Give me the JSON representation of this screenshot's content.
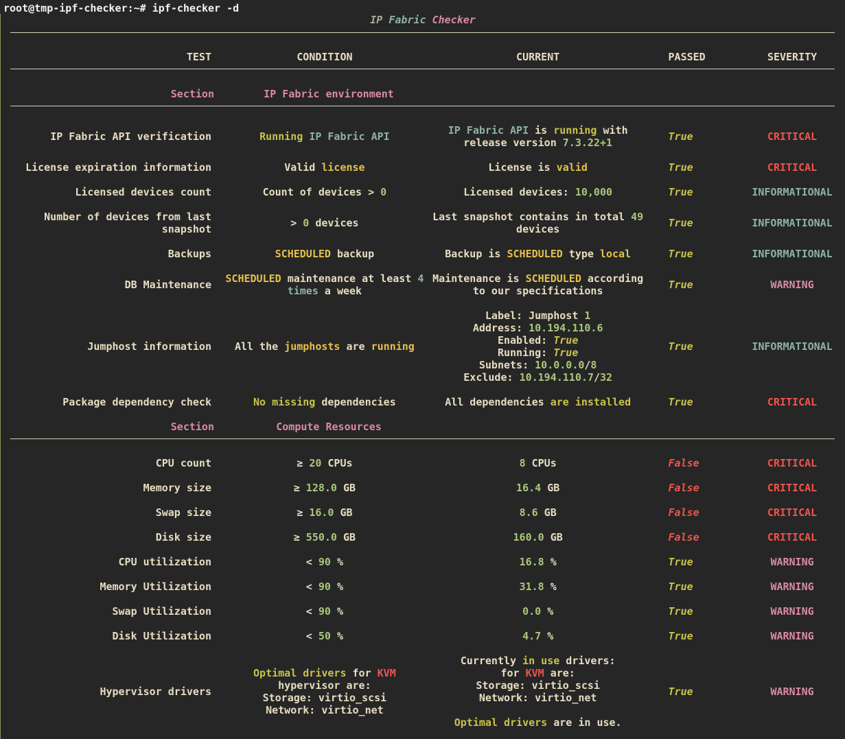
{
  "prompt": "root@tmp-ipf-checker:~# ipf-checker -d",
  "title": [
    {
      "text": "IP ",
      "color": "#a9a79a",
      "italic": true
    },
    {
      "text": "Fabric ",
      "color": "#8db3a5",
      "italic": true
    },
    {
      "text": "Checker",
      "color": "#d98aa6",
      "italic": true
    }
  ],
  "header": [
    "TEST",
    "CONDITION",
    "CURRENT",
    "PASSED",
    "SEVERITY"
  ],
  "sections": [
    {
      "label": "Section",
      "name": "IP Fabric environment",
      "rows": [
        {
          "test": [
            "IP Fabric API verification"
          ],
          "condition": [
            [
              {
                "text": "Running",
                "color": "#c9c24b"
              },
              " ",
              {
                "text": "IP Fabric API",
                "color": "#8db3a5"
              }
            ]
          ],
          "current": [
            [
              {
                "text": "IP Fabric API",
                "color": "#8db3a5"
              },
              " is ",
              {
                "text": "running",
                "color": "#c9c24b"
              },
              " with"
            ],
            [
              "release version ",
              {
                "text": "7.3.22+1",
                "color": "#a9c77c"
              }
            ]
          ],
          "passed": {
            "text": "True",
            "color": "#c9c24b",
            "italic": true
          },
          "severity": {
            "text": "CRITICAL",
            "color": "#f0544c"
          }
        },
        {
          "test": [
            "License expiration information"
          ],
          "condition": [
            [
              "Valid ",
              {
                "text": "license",
                "color": "#e5c04a"
              }
            ]
          ],
          "current": [
            [
              "License is ",
              {
                "text": "valid",
                "color": "#e5c04a"
              }
            ]
          ],
          "passed": {
            "text": "True",
            "color": "#c9c24b",
            "italic": true
          },
          "severity": {
            "text": "CRITICAL",
            "color": "#f0544c"
          }
        },
        {
          "test": [
            "Licensed devices count"
          ],
          "condition": [
            [
              "Count of devices > ",
              {
                "text": "0",
                "color": "#a9c77c"
              }
            ]
          ],
          "current": [
            [
              "Licensed devices: ",
              {
                "text": "10,000",
                "color": "#a9c77c"
              }
            ]
          ],
          "passed": {
            "text": "True",
            "color": "#c9c24b",
            "italic": true
          },
          "severity": {
            "text": "INFORMATIONAL",
            "color": "#8db3a5"
          }
        },
        {
          "test": [
            "Number of devices from last",
            "snapshot"
          ],
          "condition": [
            [
              "> ",
              {
                "text": "0",
                "color": "#a9c77c"
              },
              " devices"
            ]
          ],
          "current": [
            [
              "Last snapshot contains in total ",
              {
                "text": "49",
                "color": "#a9c77c"
              }
            ],
            [
              "devices"
            ]
          ],
          "passed": {
            "text": "True",
            "color": "#c9c24b",
            "italic": true
          },
          "severity": {
            "text": "INFORMATIONAL",
            "color": "#8db3a5"
          }
        },
        {
          "test": [
            "Backups"
          ],
          "condition": [
            [
              {
                "text": "SCHEDULED",
                "color": "#e5c04a"
              },
              " backup"
            ]
          ],
          "current": [
            [
              "Backup is ",
              {
                "text": "SCHEDULED",
                "color": "#e5c04a"
              },
              " type ",
              {
                "text": "local",
                "color": "#e5c04a"
              }
            ]
          ],
          "passed": {
            "text": "True",
            "color": "#c9c24b",
            "italic": true
          },
          "severity": {
            "text": "INFORMATIONAL",
            "color": "#8db3a5"
          }
        },
        {
          "test": [
            "DB Maintenance"
          ],
          "condition": [
            [
              {
                "text": "SCHEDULED",
                "color": "#e5c04a"
              },
              " maintenance at least ",
              {
                "text": "4",
                "color": "#8db3a5"
              }
            ],
            [
              {
                "text": "times",
                "color": "#8db3a5"
              },
              " a week"
            ]
          ],
          "current": [
            [
              "Maintenance is ",
              {
                "text": "SCHEDULED",
                "color": "#e5c04a"
              },
              " according"
            ],
            [
              "to our specifications"
            ]
          ],
          "passed": {
            "text": "True",
            "color": "#c9c24b",
            "italic": true
          },
          "severity": {
            "text": "WARNING",
            "color": "#d98aa6"
          }
        },
        {
          "test": [
            "Jumphost information"
          ],
          "condition": [
            [
              "All the ",
              {
                "text": "jumphosts",
                "color": "#e5c04a"
              },
              " are ",
              {
                "text": "running",
                "color": "#e5c04a"
              }
            ]
          ],
          "current": [
            [
              "Label: Jumphost ",
              {
                "text": "1",
                "color": "#a9c77c"
              }
            ],
            [
              "Address: ",
              {
                "text": "10.194.110.6",
                "color": "#a9c77c"
              }
            ],
            [
              "Enabled: ",
              {
                "text": "True",
                "color": "#c9c24b",
                "italic": true
              }
            ],
            [
              "Running: ",
              {
                "text": "True",
                "color": "#c9c24b",
                "italic": true
              }
            ],
            [
              "Subnets: ",
              {
                "text": "10.0.0.0",
                "color": "#a9c77c"
              },
              "/",
              {
                "text": "8",
                "color": "#a9c77c"
              }
            ],
            [
              "Exclude: ",
              {
                "text": "10.194.110.7",
                "color": "#a9c77c"
              },
              "/",
              {
                "text": "32",
                "color": "#a9c77c"
              }
            ]
          ],
          "passed": {
            "text": "True",
            "color": "#c9c24b",
            "italic": true
          },
          "severity": {
            "text": "INFORMATIONAL",
            "color": "#8db3a5"
          }
        },
        {
          "test": [
            "Package dependency check"
          ],
          "condition": [
            [
              {
                "text": "No missing",
                "color": "#c9c24b"
              },
              " dependencies"
            ]
          ],
          "current": [
            [
              "All dependencies ",
              {
                "text": "are installed",
                "color": "#c9c24b"
              }
            ]
          ],
          "passed": {
            "text": "True",
            "color": "#c9c24b",
            "italic": true
          },
          "severity": {
            "text": "CRITICAL",
            "color": "#f0544c"
          }
        }
      ]
    },
    {
      "label": "Section",
      "name": "Compute Resources",
      "rows": [
        {
          "test": [
            "CPU count"
          ],
          "condition": [
            [
              "≥ ",
              {
                "text": "20",
                "color": "#a9c77c"
              },
              " CPUs"
            ]
          ],
          "current": [
            [
              {
                "text": "8",
                "color": "#a9c77c"
              },
              " CPUs"
            ]
          ],
          "passed": {
            "text": "False",
            "color": "#f0544c",
            "italic": true
          },
          "severity": {
            "text": "CRITICAL",
            "color": "#f0544c"
          }
        },
        {
          "test": [
            "Memory size"
          ],
          "condition": [
            [
              "≥ ",
              {
                "text": "128.0",
                "color": "#a9c77c"
              },
              " GB"
            ]
          ],
          "current": [
            [
              {
                "text": "16.4",
                "color": "#a9c77c"
              },
              " GB"
            ]
          ],
          "passed": {
            "text": "False",
            "color": "#f0544c",
            "italic": true
          },
          "severity": {
            "text": "CRITICAL",
            "color": "#f0544c"
          }
        },
        {
          "test": [
            "Swap size"
          ],
          "condition": [
            [
              "≥ ",
              {
                "text": "16.0",
                "color": "#a9c77c"
              },
              " GB"
            ]
          ],
          "current": [
            [
              {
                "text": "8.6",
                "color": "#a9c77c"
              },
              " GB"
            ]
          ],
          "passed": {
            "text": "False",
            "color": "#f0544c",
            "italic": true
          },
          "severity": {
            "text": "CRITICAL",
            "color": "#f0544c"
          }
        },
        {
          "test": [
            "Disk size"
          ],
          "condition": [
            [
              "≥ ",
              {
                "text": "550.0",
                "color": "#a9c77c"
              },
              " GB"
            ]
          ],
          "current": [
            [
              {
                "text": "160.0",
                "color": "#a9c77c"
              },
              " GB"
            ]
          ],
          "passed": {
            "text": "False",
            "color": "#f0544c",
            "italic": true
          },
          "severity": {
            "text": "CRITICAL",
            "color": "#f0544c"
          }
        },
        {
          "test": [
            "CPU utilization"
          ],
          "condition": [
            [
              "< ",
              {
                "text": "90",
                "color": "#a9c77c"
              },
              " %"
            ]
          ],
          "current": [
            [
              {
                "text": "16.8",
                "color": "#a9c77c"
              },
              " %"
            ]
          ],
          "passed": {
            "text": "True",
            "color": "#c9c24b",
            "italic": true
          },
          "severity": {
            "text": "WARNING",
            "color": "#d98aa6"
          }
        },
        {
          "test": [
            "Memory Utilization"
          ],
          "condition": [
            [
              "< ",
              {
                "text": "90",
                "color": "#a9c77c"
              },
              " %"
            ]
          ],
          "current": [
            [
              {
                "text": "31.8",
                "color": "#a9c77c"
              },
              " %"
            ]
          ],
          "passed": {
            "text": "True",
            "color": "#c9c24b",
            "italic": true
          },
          "severity": {
            "text": "WARNING",
            "color": "#d98aa6"
          }
        },
        {
          "test": [
            "Swap Utilization"
          ],
          "condition": [
            [
              "< ",
              {
                "text": "90",
                "color": "#a9c77c"
              },
              " %"
            ]
          ],
          "current": [
            [
              {
                "text": "0.0",
                "color": "#a9c77c"
              },
              " %"
            ]
          ],
          "passed": {
            "text": "True",
            "color": "#c9c24b",
            "italic": true
          },
          "severity": {
            "text": "WARNING",
            "color": "#d98aa6"
          }
        },
        {
          "test": [
            "Disk Utilization"
          ],
          "condition": [
            [
              "< ",
              {
                "text": "50",
                "color": "#a9c77c"
              },
              " %"
            ]
          ],
          "current": [
            [
              {
                "text": "4.7",
                "color": "#a9c77c"
              },
              " %"
            ]
          ],
          "passed": {
            "text": "True",
            "color": "#c9c24b",
            "italic": true
          },
          "severity": {
            "text": "WARNING",
            "color": "#d98aa6"
          }
        },
        {
          "test": [
            "Hypervisor drivers"
          ],
          "condition": [
            [
              {
                "text": "Optimal drivers",
                "color": "#c9c24b"
              },
              " for ",
              {
                "text": "KVM",
                "color": "#f0544c"
              }
            ],
            [
              "hypervisor are:"
            ],
            [
              "Storage: virtio_scsi"
            ],
            [
              "Network: virtio_net"
            ]
          ],
          "current": [
            [
              "Currently ",
              {
                "text": "in use",
                "color": "#c9c24b"
              },
              " drivers:"
            ],
            [
              "for ",
              {
                "text": "KVM",
                "color": "#f0544c"
              },
              " are:"
            ],
            [
              "Storage: virtio_scsi"
            ],
            [
              "Network: virtio_net"
            ],
            [],
            [
              {
                "text": "Optimal drivers",
                "color": "#c9c24b"
              },
              " are in use."
            ]
          ],
          "passed": {
            "text": "True",
            "color": "#c9c24b",
            "italic": true
          },
          "severity": {
            "text": "WARNING",
            "color": "#d98aa6"
          }
        }
      ]
    }
  ]
}
